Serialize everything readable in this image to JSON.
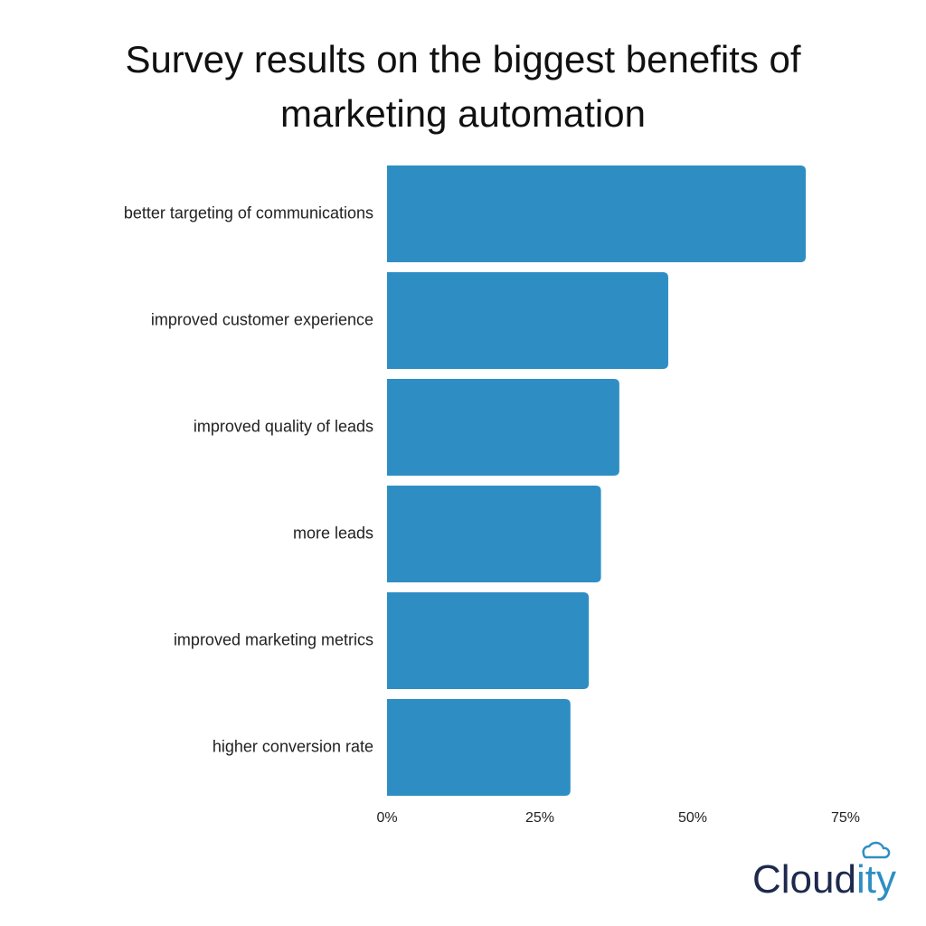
{
  "chart_data": {
    "type": "barh",
    "title": "Survey results on the biggest benefits of marketing automation",
    "categories": [
      "better targeting of communications",
      "improved customer experience",
      "improved quality of leads",
      "more leads",
      "improved marketing metrics",
      "higher conversion rate"
    ],
    "values": [
      68.5,
      46,
      38,
      35,
      33,
      30
    ],
    "color": "#2e8ec4",
    "xlim": [
      0,
      75
    ],
    "xticks": [
      {
        "value": 0,
        "label": "0%"
      },
      {
        "value": 25,
        "label": "25%"
      },
      {
        "value": 50,
        "label": "50%"
      },
      {
        "value": 75,
        "label": "75%"
      }
    ],
    "grid": false
  },
  "brand": {
    "name_start": "Cloud",
    "name_end": "ity"
  }
}
